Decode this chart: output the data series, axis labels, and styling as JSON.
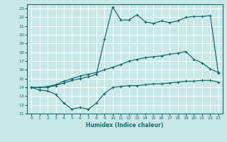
{
  "xlabel": "Humidex (Indice chaleur)",
  "background_color": "#c8e8e8",
  "grid_color": "#ffffff",
  "line_color": "#1a6b6b",
  "xlim": [
    -0.5,
    23.5
  ],
  "ylim": [
    11,
    23.5
  ],
  "xticks": [
    0,
    1,
    2,
    3,
    4,
    5,
    6,
    7,
    8,
    9,
    10,
    11,
    12,
    13,
    14,
    15,
    16,
    17,
    18,
    19,
    20,
    21,
    22,
    23
  ],
  "yticks": [
    11,
    12,
    13,
    14,
    15,
    16,
    17,
    18,
    19,
    20,
    21,
    22,
    23
  ],
  "line1_x": [
    0,
    1,
    2,
    3,
    4,
    5,
    6,
    7,
    8,
    9,
    10,
    11,
    12,
    13,
    14,
    15,
    16,
    17,
    18,
    19,
    20,
    21,
    22,
    23
  ],
  "line1_y": [
    14.0,
    13.7,
    13.6,
    13.2,
    12.2,
    11.5,
    11.7,
    11.5,
    12.2,
    13.3,
    14.0,
    14.1,
    14.2,
    14.2,
    14.3,
    14.4,
    14.4,
    14.5,
    14.6,
    14.7,
    14.7,
    14.8,
    14.8,
    14.6
  ],
  "line2_x": [
    0,
    1,
    2,
    3,
    4,
    5,
    6,
    7,
    8,
    9,
    10,
    11,
    12,
    13,
    14,
    15,
    16,
    17,
    18,
    19,
    20,
    21,
    22,
    23
  ],
  "line2_y": [
    14.0,
    14.0,
    14.1,
    14.3,
    14.7,
    15.0,
    15.3,
    15.5,
    15.7,
    16.0,
    16.3,
    16.6,
    17.0,
    17.2,
    17.4,
    17.5,
    17.6,
    17.8,
    17.9,
    18.1,
    17.2,
    16.8,
    16.1,
    15.7
  ],
  "line3_x": [
    0,
    1,
    2,
    3,
    4,
    5,
    6,
    7,
    8,
    9,
    10,
    11,
    12,
    13,
    14,
    15,
    16,
    17,
    18,
    19,
    20,
    21,
    22,
    23
  ],
  "line3_y": [
    14.0,
    14.0,
    14.0,
    14.2,
    14.5,
    14.8,
    15.0,
    15.2,
    15.5,
    19.5,
    23.2,
    21.7,
    21.7,
    22.3,
    21.5,
    21.3,
    21.6,
    21.4,
    21.6,
    22.0,
    22.1,
    22.1,
    22.2,
    15.6
  ]
}
